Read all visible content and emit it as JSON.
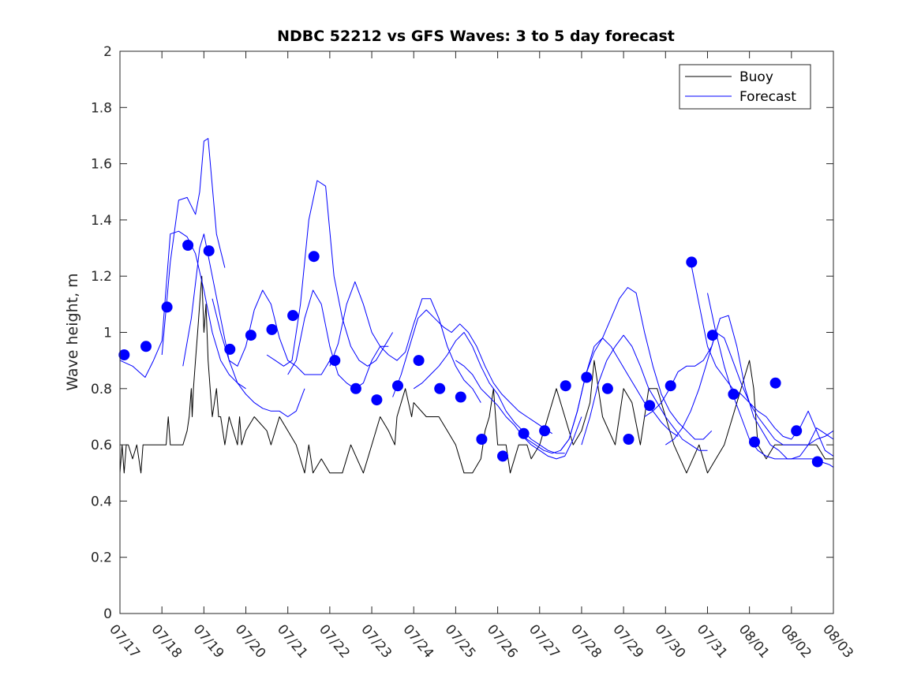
{
  "chart_data": {
    "type": "line",
    "title": "NDBC 52212 vs GFS Waves: 3 to 5 day forecast",
    "ylabel": "Wave height, m",
    "xlabel": "",
    "ylim": [
      0,
      2
    ],
    "y_ticks": [
      "0",
      "0.2",
      "0.4",
      "0.6",
      "0.8",
      "1",
      "1.2",
      "1.4",
      "1.6",
      "1.8",
      "2"
    ],
    "x_ticks": [
      "07/17",
      "07/18",
      "07/19",
      "07/20",
      "07/21",
      "07/22",
      "07/23",
      "07/24",
      "07/25",
      "07/26",
      "07/27",
      "07/28",
      "07/29",
      "07/30",
      "07/31",
      "08/01",
      "08/02",
      "08/03"
    ],
    "x_units": "days since 07/17",
    "xlim": [
      0,
      17
    ],
    "grid": false,
    "legend_position": "top-right",
    "colors": {
      "buoy": "#000000",
      "forecast": "#0000ff"
    },
    "series": [
      {
        "name": "Buoy",
        "role": "buoy",
        "x": [
          0,
          0.05,
          0.1,
          0.15,
          0.2,
          0.3,
          0.4,
          0.5,
          0.55,
          0.6,
          1.0,
          1.1,
          1.15,
          1.2,
          1.4,
          1.5,
          1.6,
          1.65,
          1.7,
          1.72,
          1.75,
          1.8,
          1.85,
          1.9,
          1.95,
          2.0,
          2.05,
          2.1,
          2.15,
          2.2,
          2.3,
          2.35,
          2.4,
          2.5,
          2.6,
          2.8,
          2.85,
          2.9,
          3.0,
          3.2,
          3.5,
          3.6,
          3.8,
          4.0,
          4.2,
          4.4,
          4.5,
          4.6,
          4.8,
          5.0,
          5.3,
          5.5,
          5.8,
          6.0,
          6.2,
          6.4,
          6.55,
          6.6,
          6.8,
          6.95,
          7.0,
          7.3,
          7.4,
          7.6,
          7.8,
          8.0,
          8.2,
          8.4,
          8.6,
          8.7,
          8.8,
          8.9,
          9.0,
          9.2,
          9.3,
          9.5,
          9.7,
          9.8,
          10.0,
          10.2,
          10.4,
          10.6,
          10.8,
          11.0,
          11.2,
          11.3,
          11.5,
          11.8,
          12.0,
          12.2,
          12.4,
          12.6,
          12.8,
          13.0,
          13.2,
          13.5,
          13.8,
          14.0,
          14.2,
          14.4,
          14.6,
          14.8,
          15.0,
          15.1,
          15.2,
          15.4,
          15.6,
          15.8,
          16.0,
          16.3,
          16.6,
          16.8,
          17.0
        ],
        "y": [
          0.5,
          0.6,
          0.5,
          0.6,
          0.6,
          0.55,
          0.6,
          0.5,
          0.6,
          0.6,
          0.6,
          0.6,
          0.7,
          0.6,
          0.6,
          0.6,
          0.65,
          0.7,
          0.8,
          0.7,
          0.8,
          0.9,
          1.0,
          1.1,
          1.2,
          1.0,
          1.1,
          0.9,
          0.8,
          0.7,
          0.8,
          0.7,
          0.7,
          0.6,
          0.7,
          0.6,
          0.7,
          0.6,
          0.65,
          0.7,
          0.65,
          0.6,
          0.7,
          0.65,
          0.6,
          0.5,
          0.6,
          0.5,
          0.55,
          0.5,
          0.5,
          0.6,
          0.5,
          0.6,
          0.7,
          0.65,
          0.6,
          0.7,
          0.8,
          0.7,
          0.75,
          0.7,
          0.7,
          0.7,
          0.65,
          0.6,
          0.5,
          0.5,
          0.55,
          0.65,
          0.7,
          0.8,
          0.6,
          0.6,
          0.5,
          0.6,
          0.6,
          0.55,
          0.6,
          0.7,
          0.8,
          0.7,
          0.6,
          0.65,
          0.75,
          0.9,
          0.7,
          0.6,
          0.8,
          0.75,
          0.6,
          0.8,
          0.8,
          0.7,
          0.6,
          0.5,
          0.6,
          0.5,
          0.55,
          0.6,
          0.7,
          0.8,
          0.9,
          0.8,
          0.6,
          0.55,
          0.6,
          0.6,
          0.6,
          0.6,
          0.6,
          0.55,
          0.55
        ]
      },
      {
        "name": "Forecast",
        "role": "forecast",
        "x": [
          0,
          0.3,
          0.6,
          0.8,
          1.0,
          1.2,
          1.4,
          1.6,
          1.8,
          2.0,
          2.2,
          2.4,
          2.6,
          2.8,
          3.0
        ],
        "y": [
          0.9,
          0.88,
          0.84,
          0.9,
          0.97,
          1.35,
          1.36,
          1.34,
          1.28,
          1.15,
          1.0,
          0.9,
          0.85,
          0.82,
          0.8
        ]
      },
      {
        "name": "",
        "role": "forecast",
        "x": [
          1.0,
          1.2,
          1.4,
          1.6,
          1.8,
          1.9,
          2.0,
          2.1,
          2.3,
          2.5
        ],
        "y": [
          0.92,
          1.25,
          1.47,
          1.48,
          1.42,
          1.5,
          1.68,
          1.69,
          1.35,
          1.23
        ]
      },
      {
        "name": "",
        "role": "forecast",
        "x": [
          1.5,
          1.7,
          1.9,
          2.0,
          2.2,
          2.4,
          2.6,
          2.8,
          3.0,
          3.2,
          3.4,
          3.6,
          3.8,
          4.0,
          4.2,
          4.4
        ],
        "y": [
          0.88,
          1.05,
          1.3,
          1.35,
          1.2,
          1.05,
          0.9,
          0.82,
          0.78,
          0.75,
          0.73,
          0.72,
          0.72,
          0.7,
          0.72,
          0.8
        ]
      },
      {
        "name": "",
        "role": "forecast",
        "x": [
          2.2,
          2.4,
          2.6,
          2.8,
          3.0,
          3.2,
          3.4,
          3.6,
          3.8,
          4.0,
          4.2,
          4.4,
          4.6,
          4.8,
          5.0
        ],
        "y": [
          1.12,
          1.0,
          0.9,
          0.88,
          0.95,
          1.08,
          1.15,
          1.1,
          0.98,
          0.9,
          0.88,
          0.85,
          0.85,
          0.85,
          0.9
        ]
      },
      {
        "name": "",
        "role": "forecast",
        "x": [
          3.5,
          3.7,
          3.9,
          4.1,
          4.3,
          4.5,
          4.7,
          4.9,
          5.1,
          5.3,
          5.5,
          5.7,
          5.9,
          6.1,
          6.3,
          6.5
        ],
        "y": [
          0.92,
          0.9,
          0.88,
          0.9,
          1.1,
          1.4,
          1.54,
          1.52,
          1.2,
          1.05,
          0.95,
          0.9,
          0.88,
          0.9,
          0.95,
          1.0
        ]
      },
      {
        "name": "",
        "role": "forecast",
        "x": [
          4.0,
          4.2,
          4.4,
          4.6,
          4.8,
          5.0,
          5.2,
          5.4,
          5.6,
          5.8,
          6.0,
          6.2,
          6.4
        ],
        "y": [
          0.85,
          0.9,
          1.05,
          1.15,
          1.1,
          0.95,
          0.85,
          0.82,
          0.8,
          0.82,
          0.9,
          0.95,
          0.95
        ]
      },
      {
        "name": "",
        "role": "forecast",
        "x": [
          5.0,
          5.2,
          5.4,
          5.6,
          5.8,
          6.0,
          6.2,
          6.4,
          6.6,
          6.8,
          7.0,
          7.2,
          7.4,
          7.6,
          7.8,
          8.0,
          8.2,
          8.4,
          8.6
        ],
        "y": [
          0.88,
          0.96,
          1.1,
          1.18,
          1.1,
          1.0,
          0.95,
          0.92,
          0.9,
          0.93,
          1.03,
          1.12,
          1.12,
          1.05,
          0.95,
          0.88,
          0.83,
          0.8,
          0.75
        ]
      },
      {
        "name": "",
        "role": "forecast",
        "x": [
          6.5,
          6.7,
          6.9,
          7.1,
          7.3,
          7.5,
          7.7,
          7.9,
          8.1,
          8.3,
          8.5,
          8.7,
          8.9,
          9.1,
          9.3,
          9.5,
          9.7,
          9.9,
          10.1,
          10.3
        ],
        "y": [
          0.77,
          0.85,
          0.95,
          1.05,
          1.08,
          1.05,
          1.02,
          1.0,
          1.03,
          1.0,
          0.95,
          0.88,
          0.82,
          0.78,
          0.75,
          0.72,
          0.7,
          0.68,
          0.66,
          0.64
        ]
      },
      {
        "name": "",
        "role": "forecast",
        "x": [
          7.0,
          7.2,
          7.4,
          7.6,
          7.8,
          8.0,
          8.2,
          8.4,
          8.6,
          8.8,
          9.0,
          9.2,
          9.4,
          9.6,
          9.8,
          10.0,
          10.2,
          10.4,
          10.6
        ],
        "y": [
          0.8,
          0.82,
          0.85,
          0.88,
          0.92,
          0.97,
          1.0,
          0.95,
          0.88,
          0.82,
          0.78,
          0.72,
          0.68,
          0.65,
          0.62,
          0.6,
          0.58,
          0.57,
          0.57
        ]
      },
      {
        "name": "",
        "role": "forecast",
        "x": [
          8.0,
          8.2,
          8.4,
          8.6,
          8.8,
          9.0,
          9.2,
          9.4,
          9.6,
          9.8,
          10.0,
          10.2,
          10.4,
          10.6,
          10.8,
          11.0
        ],
        "y": [
          0.9,
          0.88,
          0.85,
          0.8,
          0.77,
          0.74,
          0.7,
          0.67,
          0.63,
          0.6,
          0.58,
          0.56,
          0.55,
          0.56,
          0.62,
          0.7
        ]
      },
      {
        "name": "",
        "role": "forecast",
        "x": [
          9.5,
          9.7,
          9.9,
          10.1,
          10.3,
          10.5,
          10.7,
          10.9,
          11.1,
          11.3,
          11.5,
          11.7,
          11.9,
          12.1,
          12.3,
          12.5,
          12.7,
          12.9,
          13.1,
          13.3
        ],
        "y": [
          0.65,
          0.62,
          0.6,
          0.58,
          0.57,
          0.58,
          0.62,
          0.72,
          0.85,
          0.95,
          0.98,
          0.95,
          0.9,
          0.85,
          0.8,
          0.75,
          0.72,
          0.68,
          0.65,
          0.63
        ]
      },
      {
        "name": "",
        "role": "forecast",
        "x": [
          10.5,
          10.7,
          10.9,
          11.1,
          11.3,
          11.5,
          11.7,
          11.9,
          12.1,
          12.3,
          12.5,
          12.7,
          12.9,
          13.1,
          13.3,
          13.5,
          13.7,
          13.9,
          14.1
        ],
        "y": [
          0.58,
          0.62,
          0.72,
          0.85,
          0.93,
          0.98,
          1.05,
          1.12,
          1.16,
          1.14,
          1.0,
          0.88,
          0.78,
          0.72,
          0.68,
          0.65,
          0.62,
          0.62,
          0.65
        ]
      },
      {
        "name": "",
        "role": "forecast",
        "x": [
          11.0,
          11.2,
          11.4,
          11.6,
          11.8,
          12.0,
          12.2,
          12.4,
          12.6,
          12.8,
          13.0,
          13.2,
          13.4,
          13.6,
          13.8,
          14.0
        ],
        "y": [
          0.6,
          0.7,
          0.82,
          0.9,
          0.95,
          0.99,
          0.95,
          0.88,
          0.8,
          0.75,
          0.7,
          0.66,
          0.62,
          0.6,
          0.58,
          0.58
        ]
      },
      {
        "name": "",
        "role": "forecast",
        "x": [
          12.5,
          12.7,
          12.9,
          13.1,
          13.3,
          13.5,
          13.7,
          13.9,
          14.1,
          14.3,
          14.5,
          14.7,
          14.9,
          15.1,
          15.3,
          15.5,
          15.7,
          15.9,
          16.1,
          16.3,
          16.5,
          16.7,
          16.9,
          17.0
        ],
        "y": [
          0.7,
          0.72,
          0.75,
          0.8,
          0.86,
          0.88,
          0.88,
          0.9,
          0.95,
          1.05,
          1.06,
          0.95,
          0.8,
          0.7,
          0.65,
          0.6,
          0.58,
          0.55,
          0.55,
          0.55,
          0.55,
          0.54,
          0.53,
          0.52
        ]
      },
      {
        "name": "",
        "role": "forecast",
        "x": [
          13.0,
          13.2,
          13.4,
          13.6,
          13.8,
          14.0,
          14.2,
          14.4,
          14.6,
          14.8,
          15.0,
          15.2,
          15.4,
          15.6,
          15.8,
          16.0,
          16.2,
          16.4,
          16.6,
          16.8,
          17.0
        ],
        "y": [
          0.6,
          0.62,
          0.66,
          0.72,
          0.8,
          0.9,
          1.0,
          0.98,
          0.9,
          0.82,
          0.75,
          0.7,
          0.66,
          0.62,
          0.6,
          0.6,
          0.6,
          0.6,
          0.62,
          0.63,
          0.65
        ]
      },
      {
        "name": "",
        "role": "forecast",
        "x": [
          13.6,
          13.8,
          14.0,
          14.2,
          14.4,
          14.6,
          14.8,
          15.0,
          15.2,
          15.4,
          15.6,
          15.8,
          16.0,
          16.2,
          16.4,
          16.6,
          16.8,
          17.0
        ],
        "y": [
          1.25,
          1.1,
          0.95,
          0.88,
          0.84,
          0.8,
          0.78,
          0.75,
          0.72,
          0.7,
          0.66,
          0.63,
          0.62,
          0.66,
          0.72,
          0.65,
          0.58,
          0.56
        ]
      },
      {
        "name": "",
        "role": "forecast",
        "x": [
          14.0,
          14.2,
          14.4,
          14.6,
          14.8,
          15.0,
          15.2,
          15.4,
          15.6,
          15.8,
          16.0,
          16.2,
          16.4,
          16.6,
          16.8,
          17.0
        ],
        "y": [
          1.14,
          1.0,
          0.88,
          0.78,
          0.7,
          0.62,
          0.58,
          0.56,
          0.55,
          0.55,
          0.55,
          0.56,
          0.6,
          0.66,
          0.64,
          0.62
        ]
      }
    ],
    "forecast_points": {
      "x": [
        0.1,
        0.62,
        1.12,
        1.62,
        2.12,
        2.62,
        3.12,
        3.62,
        4.12,
        4.62,
        5.12,
        5.62,
        6.12,
        6.62,
        7.12,
        7.62,
        8.12,
        8.62,
        9.12,
        9.62,
        10.12,
        10.62,
        11.12,
        11.62,
        12.12,
        12.62,
        13.12,
        13.62,
        14.12,
        14.62,
        15.12,
        15.62,
        16.12,
        16.62
      ],
      "y": [
        0.92,
        0.95,
        1.09,
        1.31,
        1.29,
        0.94,
        0.99,
        1.01,
        1.06,
        1.27,
        0.9,
        0.8,
        0.76,
        0.81,
        0.9,
        0.8,
        0.77,
        0.62,
        0.56,
        0.64,
        0.65,
        0.81,
        0.84,
        0.8,
        0.62,
        0.74,
        0.81,
        1.25,
        0.99,
        0.78,
        0.61,
        0.82,
        0.65,
        0.54
      ]
    }
  }
}
